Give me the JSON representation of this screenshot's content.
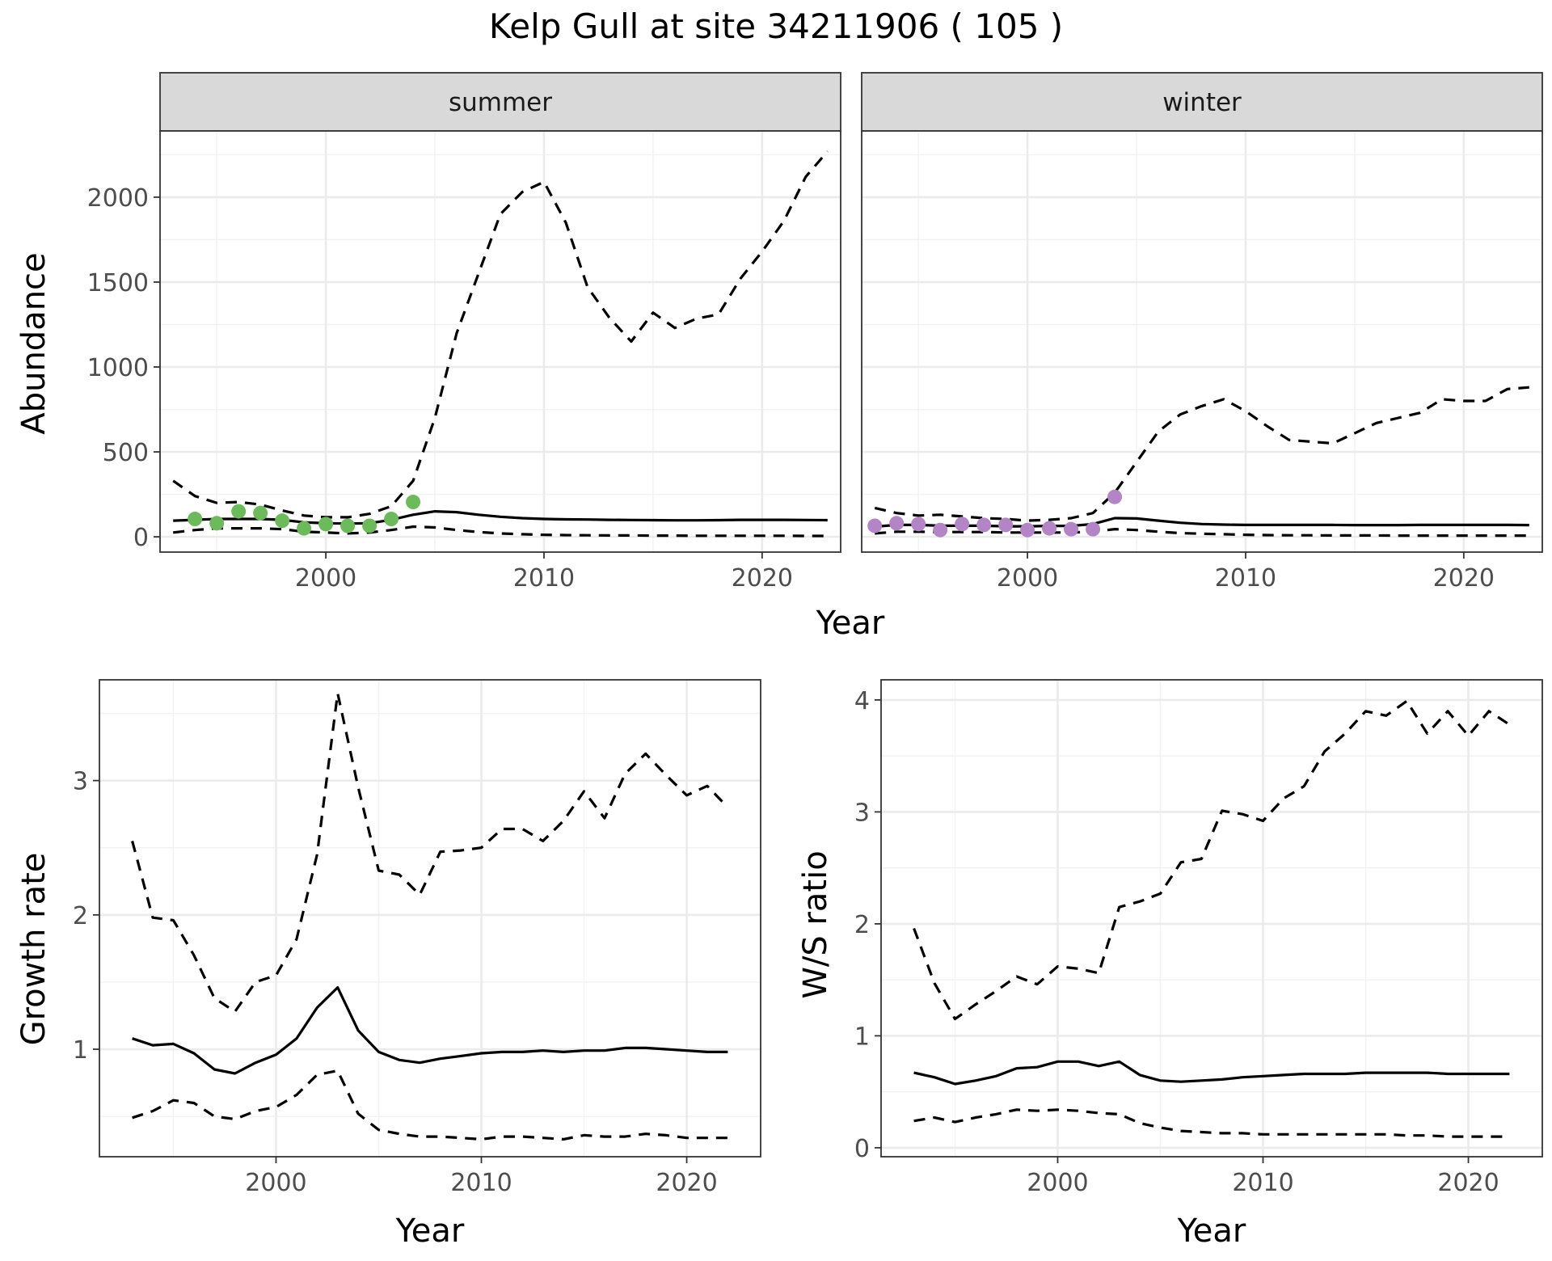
{
  "figure": {
    "title": "Kelp Gull at site 34211906 ( 105 )",
    "bottom_left_ylabel": "Growth rate",
    "bottom_right_ylabel": "W/S ratio"
  },
  "chart_data": [
    {
      "id": "abundance-summer",
      "type": "line",
      "facet": "summer",
      "xlabel": "Year",
      "ylabel": "Abundance",
      "xlim": [
        1992.4,
        2023.6
      ],
      "ylim": [
        -90,
        2390
      ],
      "xticks": [
        2000,
        2010,
        2020
      ],
      "xtick_labels": [
        "2000",
        "2010",
        "2020"
      ],
      "yticks": [
        0,
        500,
        1000,
        1500,
        2000
      ],
      "ytick_labels": [
        "0",
        "500",
        "1000",
        "1500",
        "2000"
      ],
      "grid": true,
      "point_color": "#6cbb5a",
      "series": [
        {
          "style": "solid",
          "x": [
            1993,
            1994,
            1995,
            1996,
            1997,
            1998,
            1999,
            2000,
            2001,
            2002,
            2003,
            2004,
            2005,
            2006,
            2007,
            2008,
            2009,
            2010,
            2011,
            2012,
            2013,
            2014,
            2015,
            2016,
            2017,
            2018,
            2019,
            2020,
            2021,
            2022,
            2023
          ],
          "values": [
            95,
            100,
            105,
            105,
            105,
            100,
            85,
            80,
            78,
            80,
            100,
            130,
            150,
            145,
            130,
            118,
            110,
            105,
            103,
            102,
            100,
            99,
            98,
            97,
            97,
            98,
            100,
            100,
            100,
            99,
            98
          ]
        },
        {
          "style": "dashed",
          "x": [
            1993,
            1994,
            1995,
            1996,
            1997,
            1998,
            1999,
            2000,
            2001,
            2002,
            2003,
            2004,
            2005,
            2006,
            2007,
            2008,
            2009,
            2010,
            2011,
            2012,
            2013,
            2014,
            2015,
            2016,
            2017,
            2018,
            2019,
            2020,
            2021,
            2022,
            2023
          ],
          "values": [
            330,
            240,
            200,
            205,
            190,
            155,
            125,
            115,
            115,
            135,
            180,
            330,
            700,
            1200,
            1550,
            1900,
            2030,
            2090,
            1850,
            1470,
            1290,
            1150,
            1320,
            1230,
            1285,
            1310,
            1520,
            1680,
            1860,
            2120,
            2270
          ]
        },
        {
          "style": "dashed",
          "x": [
            1993,
            1994,
            1995,
            1996,
            1997,
            1998,
            1999,
            2000,
            2001,
            2002,
            2003,
            2004,
            2005,
            2006,
            2007,
            2008,
            2009,
            2010,
            2011,
            2012,
            2013,
            2014,
            2015,
            2016,
            2017,
            2018,
            2019,
            2020,
            2021,
            2022,
            2023
          ],
          "values": [
            25,
            40,
            50,
            50,
            50,
            45,
            30,
            25,
            20,
            25,
            40,
            60,
            55,
            40,
            28,
            20,
            15,
            12,
            10,
            9,
            8,
            8,
            7,
            7,
            6,
            6,
            6,
            6,
            6,
            5,
            5
          ]
        },
        {
          "style": "points",
          "x": [
            1994,
            1995,
            1996,
            1997,
            1998,
            1999,
            2000,
            2001,
            2002,
            2003,
            2004
          ],
          "values": [
            105,
            80,
            150,
            140,
            95,
            50,
            75,
            65,
            65,
            105,
            205
          ]
        }
      ]
    },
    {
      "id": "abundance-winter",
      "type": "line",
      "facet": "winter",
      "xlabel": "Year",
      "ylabel": "Abundance",
      "xlim": [
        1992.4,
        2023.6
      ],
      "ylim": [
        -90,
        2390
      ],
      "xticks": [
        2000,
        2010,
        2020
      ],
      "xtick_labels": [
        "2000",
        "2010",
        "2020"
      ],
      "yticks": [
        0,
        500,
        1000,
        1500,
        2000
      ],
      "grid": true,
      "point_color": "#b385c7",
      "series": [
        {
          "style": "solid",
          "x": [
            1993,
            1994,
            1995,
            1996,
            1997,
            1998,
            1999,
            2000,
            2001,
            2002,
            2003,
            2004,
            2005,
            2006,
            2007,
            2008,
            2009,
            2010,
            2011,
            2012,
            2013,
            2014,
            2015,
            2016,
            2017,
            2018,
            2019,
            2020,
            2021,
            2022,
            2023
          ],
          "values": [
            60,
            70,
            70,
            65,
            65,
            65,
            62,
            62,
            64,
            64,
            75,
            110,
            108,
            95,
            83,
            75,
            72,
            70,
            70,
            70,
            70,
            70,
            69,
            69,
            69,
            70,
            70,
            70,
            70,
            70,
            69
          ]
        },
        {
          "style": "dashed",
          "x": [
            1993,
            1994,
            1995,
            1996,
            1997,
            1998,
            1999,
            2000,
            2001,
            2002,
            2003,
            2004,
            2005,
            2006,
            2007,
            2008,
            2009,
            2010,
            2011,
            2012,
            2013,
            2014,
            2015,
            2016,
            2017,
            2018,
            2019,
            2020,
            2021,
            2022,
            2023
          ],
          "values": [
            170,
            140,
            125,
            130,
            120,
            110,
            105,
            95,
            100,
            110,
            140,
            260,
            440,
            620,
            720,
            770,
            810,
            740,
            650,
            570,
            560,
            550,
            610,
            670,
            700,
            730,
            810,
            800,
            800,
            870,
            880
          ]
        },
        {
          "style": "dashed",
          "x": [
            1993,
            1994,
            1995,
            1996,
            1997,
            1998,
            1999,
            2000,
            2001,
            2002,
            2003,
            2004,
            2005,
            2006,
            2007,
            2008,
            2009,
            2010,
            2011,
            2012,
            2013,
            2014,
            2015,
            2016,
            2017,
            2018,
            2019,
            2020,
            2021,
            2022,
            2023
          ],
          "values": [
            20,
            30,
            30,
            28,
            28,
            28,
            25,
            25,
            25,
            25,
            30,
            45,
            40,
            30,
            22,
            18,
            15,
            12,
            10,
            9,
            9,
            8,
            8,
            8,
            7,
            7,
            7,
            7,
            7,
            7,
            7
          ]
        },
        {
          "style": "points",
          "x": [
            1993,
            1994,
            1995,
            1996,
            1997,
            1998,
            1999,
            2000,
            2001,
            2002,
            2003,
            2004
          ],
          "values": [
            65,
            80,
            75,
            40,
            75,
            70,
            70,
            40,
            50,
            45,
            45,
            235
          ]
        }
      ]
    },
    {
      "id": "growth-rate",
      "type": "line",
      "xlabel": "Year",
      "ylabel": "Growth rate",
      "xlim": [
        1991.4,
        2023.6
      ],
      "ylim": [
        0.2,
        3.75
      ],
      "xticks": [
        2000,
        2010,
        2020
      ],
      "xtick_labels": [
        "2000",
        "2010",
        "2020"
      ],
      "yticks": [
        1,
        2,
        3
      ],
      "ytick_labels": [
        "1",
        "2",
        "3"
      ],
      "grid": true,
      "series": [
        {
          "style": "solid",
          "x": [
            1993,
            1994,
            1995,
            1996,
            1997,
            1998,
            1999,
            2000,
            2001,
            2002,
            2003,
            2004,
            2005,
            2006,
            2007,
            2008,
            2009,
            2010,
            2011,
            2012,
            2013,
            2014,
            2015,
            2016,
            2017,
            2018,
            2019,
            2020,
            2021,
            2022
          ],
          "values": [
            1.08,
            1.03,
            1.04,
            0.97,
            0.85,
            0.82,
            0.9,
            0.96,
            1.08,
            1.31,
            1.46,
            1.14,
            0.98,
            0.92,
            0.9,
            0.93,
            0.95,
            0.97,
            0.98,
            0.98,
            0.99,
            0.98,
            0.99,
            0.99,
            1.01,
            1.01,
            1.0,
            0.99,
            0.98,
            0.98
          ]
        },
        {
          "style": "dashed",
          "x": [
            1993,
            1994,
            1995,
            1996,
            1997,
            1998,
            1999,
            2000,
            2001,
            2002,
            2003,
            2004,
            2005,
            2006,
            2007,
            2008,
            2009,
            2010,
            2011,
            2012,
            2013,
            2014,
            2015,
            2016,
            2017,
            2018,
            2019,
            2020,
            2021,
            2022
          ],
          "values": [
            2.55,
            1.98,
            1.96,
            1.7,
            1.38,
            1.28,
            1.5,
            1.55,
            1.82,
            2.45,
            3.65,
            2.95,
            2.33,
            2.3,
            2.15,
            2.47,
            2.48,
            2.5,
            2.64,
            2.64,
            2.55,
            2.7,
            2.92,
            2.72,
            3.05,
            3.2,
            3.04,
            2.89,
            2.96,
            2.8
          ]
        },
        {
          "style": "dashed",
          "x": [
            1993,
            1994,
            1995,
            1996,
            1997,
            1998,
            1999,
            2000,
            2001,
            2002,
            2003,
            2004,
            2005,
            2006,
            2007,
            2008,
            2009,
            2010,
            2011,
            2012,
            2013,
            2014,
            2015,
            2016,
            2017,
            2018,
            2019,
            2020,
            2021,
            2022
          ],
          "values": [
            0.49,
            0.54,
            0.62,
            0.6,
            0.5,
            0.48,
            0.54,
            0.57,
            0.66,
            0.81,
            0.84,
            0.52,
            0.4,
            0.37,
            0.35,
            0.35,
            0.34,
            0.33,
            0.35,
            0.35,
            0.34,
            0.33,
            0.36,
            0.35,
            0.35,
            0.37,
            0.36,
            0.34,
            0.34,
            0.34
          ]
        }
      ]
    },
    {
      "id": "ws-ratio",
      "type": "line",
      "xlabel": "Year",
      "ylabel": "W/S ratio",
      "xlim": [
        1991.4,
        2023.6
      ],
      "ylim": [
        -0.08,
        4.18
      ],
      "xticks": [
        2000,
        2010,
        2020
      ],
      "xtick_labels": [
        "2000",
        "2010",
        "2020"
      ],
      "yticks": [
        0,
        1,
        2,
        3,
        4
      ],
      "ytick_labels": [
        "0",
        "1",
        "2",
        "3",
        "4"
      ],
      "grid": true,
      "series": [
        {
          "style": "solid",
          "x": [
            1993,
            1994,
            1995,
            1996,
            1997,
            1998,
            1999,
            2000,
            2001,
            2002,
            2003,
            2004,
            2005,
            2006,
            2007,
            2008,
            2009,
            2010,
            2011,
            2012,
            2013,
            2014,
            2015,
            2016,
            2017,
            2018,
            2019,
            2020,
            2021,
            2022
          ],
          "values": [
            0.67,
            0.63,
            0.57,
            0.6,
            0.64,
            0.71,
            0.72,
            0.77,
            0.77,
            0.73,
            0.77,
            0.65,
            0.6,
            0.59,
            0.6,
            0.61,
            0.63,
            0.64,
            0.65,
            0.66,
            0.66,
            0.66,
            0.67,
            0.67,
            0.67,
            0.67,
            0.66,
            0.66,
            0.66,
            0.66
          ]
        },
        {
          "style": "dashed",
          "x": [
            1993,
            1994,
            1995,
            1996,
            1997,
            1998,
            1999,
            2000,
            2001,
            2002,
            2003,
            2004,
            2005,
            2006,
            2007,
            2008,
            2009,
            2010,
            2011,
            2012,
            2013,
            2014,
            2015,
            2016,
            2017,
            2018,
            2019,
            2020,
            2021,
            2022
          ],
          "values": [
            1.96,
            1.47,
            1.15,
            1.28,
            1.4,
            1.53,
            1.46,
            1.62,
            1.6,
            1.56,
            2.15,
            2.2,
            2.27,
            2.55,
            2.58,
            3.01,
            2.98,
            2.92,
            3.12,
            3.23,
            3.54,
            3.7,
            3.9,
            3.86,
            3.99,
            3.7,
            3.9,
            3.68,
            3.9,
            3.78
          ]
        },
        {
          "style": "dashed",
          "x": [
            1993,
            1994,
            1995,
            1996,
            1997,
            1998,
            1999,
            2000,
            2001,
            2002,
            2003,
            2004,
            2005,
            2006,
            2007,
            2008,
            2009,
            2010,
            2011,
            2012,
            2013,
            2014,
            2015,
            2016,
            2017,
            2018,
            2019,
            2020,
            2021,
            2022
          ],
          "values": [
            0.24,
            0.27,
            0.23,
            0.27,
            0.3,
            0.34,
            0.33,
            0.34,
            0.33,
            0.31,
            0.3,
            0.22,
            0.18,
            0.15,
            0.14,
            0.13,
            0.13,
            0.12,
            0.12,
            0.12,
            0.12,
            0.12,
            0.12,
            0.12,
            0.11,
            0.11,
            0.1,
            0.1,
            0.1,
            0.1
          ]
        }
      ]
    }
  ]
}
